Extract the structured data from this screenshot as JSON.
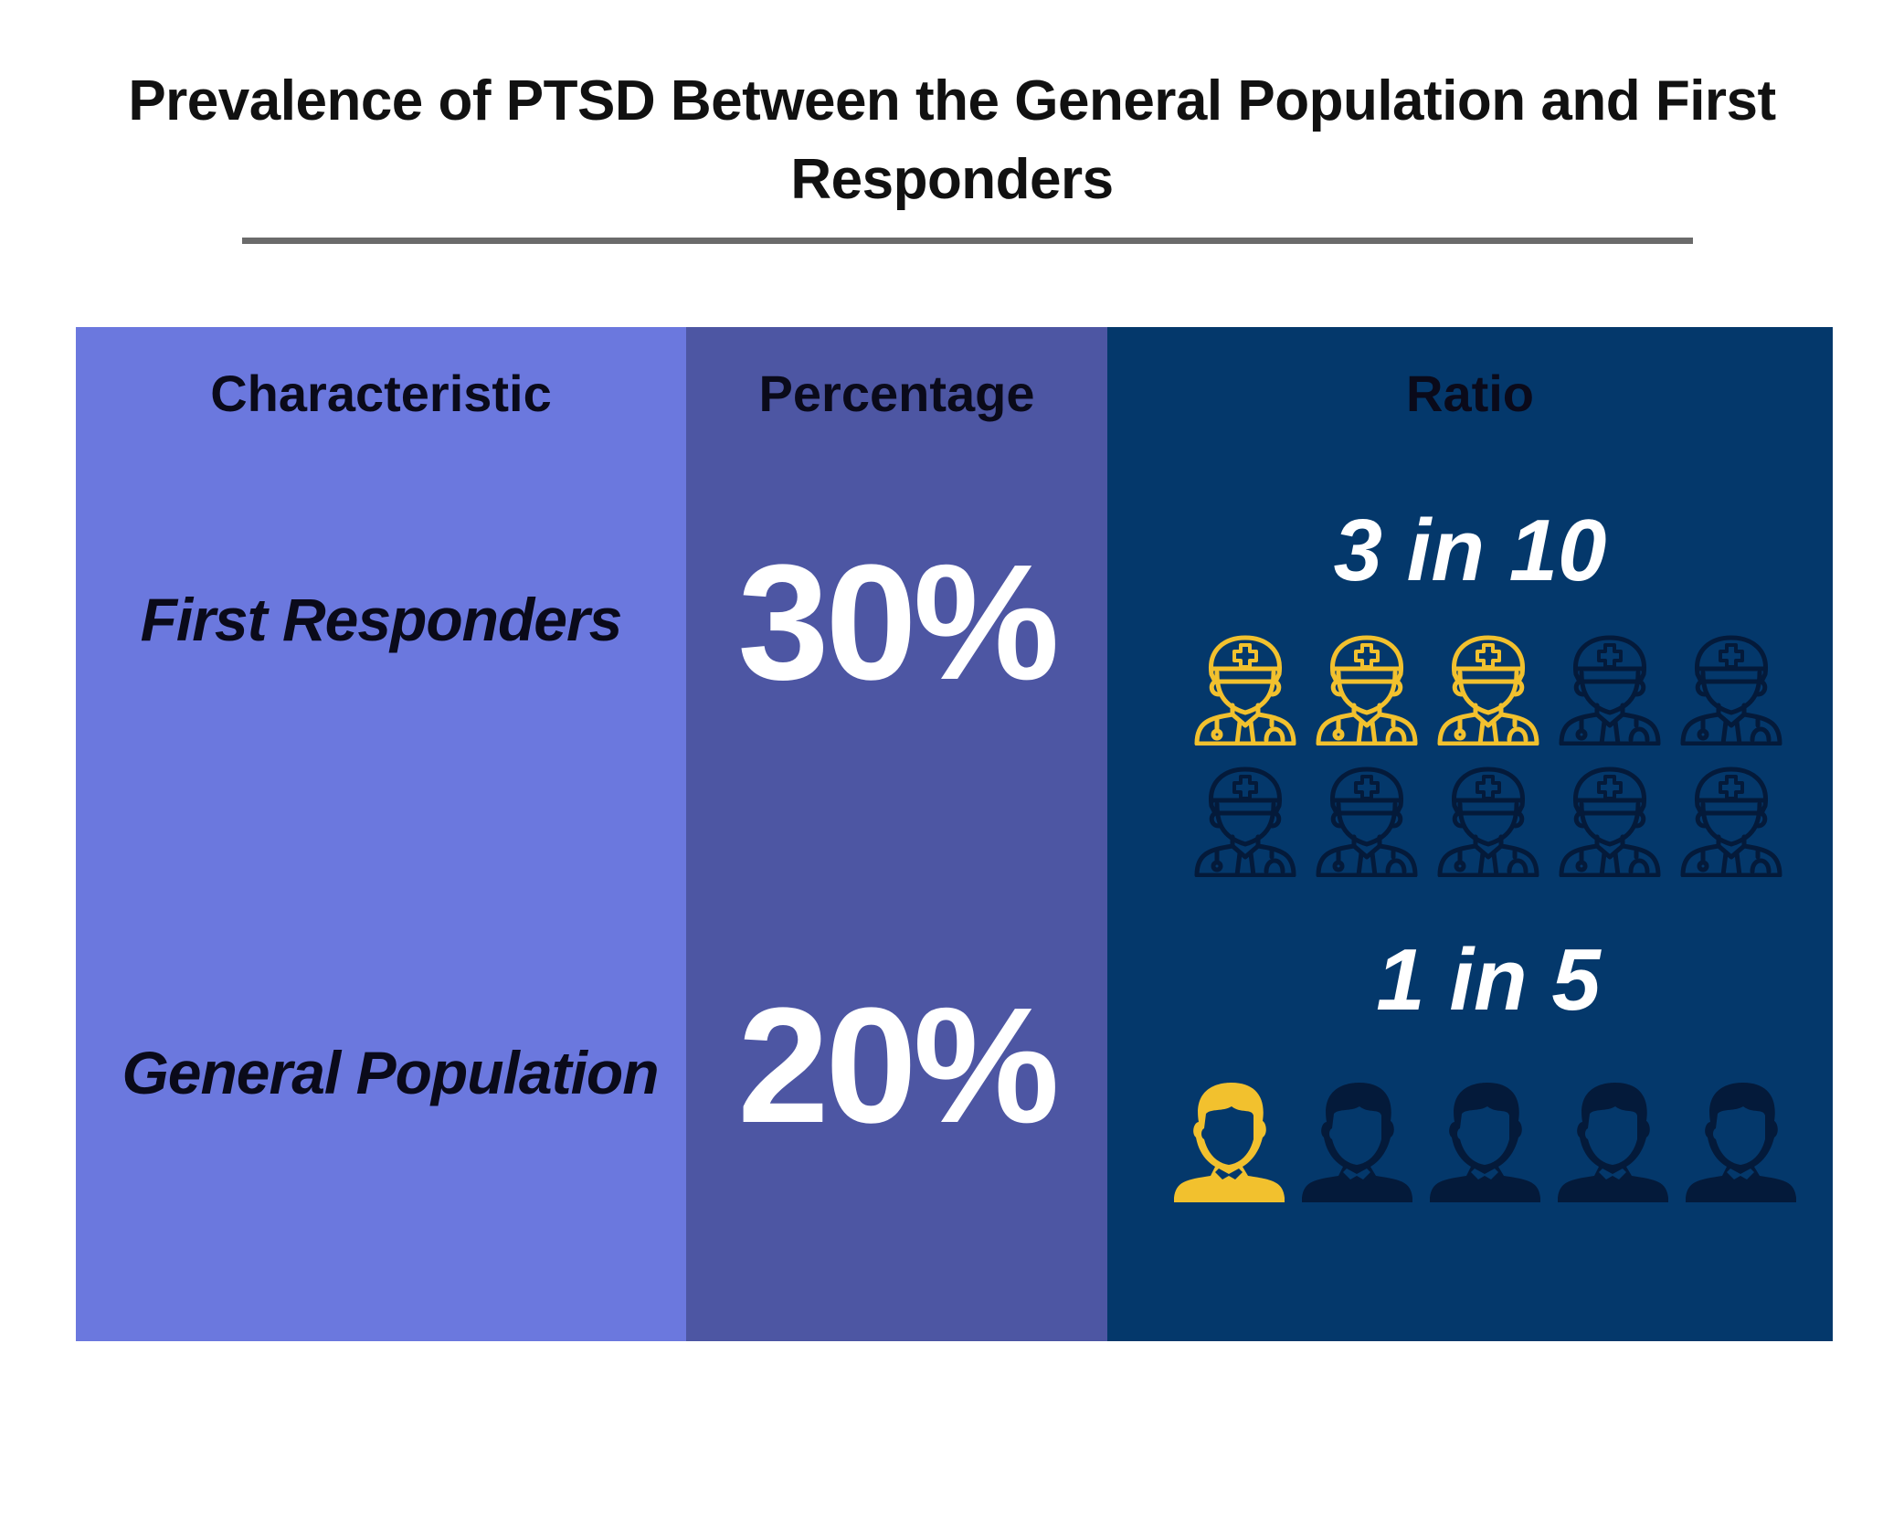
{
  "title": "Prevalence of PTSD Between the General Population and First Responders",
  "headers": {
    "characteristic": "Characteristic",
    "percentage": "Percentage",
    "ratio": "Ratio"
  },
  "rows": [
    {
      "characteristic": "First Responders",
      "percentage": "30%",
      "ratio": "3 in 10",
      "highlighted": 3,
      "total": 10,
      "icon": "medic-icon"
    },
    {
      "characteristic": "General Population",
      "percentage": "20%",
      "ratio": "1 in 5",
      "highlighted": 1,
      "total": 5,
      "icon": "person-icon"
    }
  ],
  "colors": {
    "characteristic_column": "#6b78de",
    "percentage_column": "#4d56a3",
    "ratio_column": "#04386b",
    "highlight": "#f2c12e",
    "muted_icon": "#041a3a",
    "rule": "#6b6b6b"
  }
}
